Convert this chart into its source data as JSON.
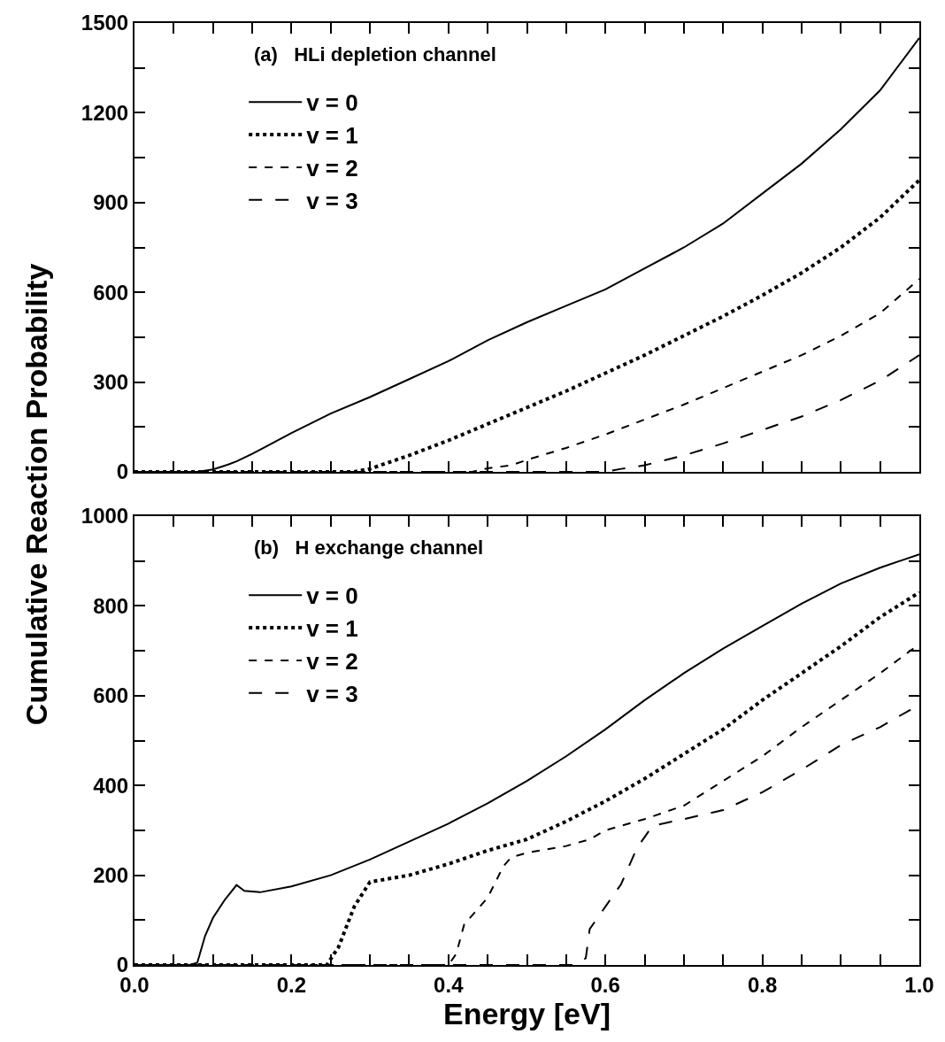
{
  "chart_data": [
    {
      "type": "line",
      "ylabel": "Cumulative Reaction Probability",
      "annotations": [
        "(a)   HLi depletion channel"
      ],
      "xlim": [
        0,
        1
      ],
      "ylim": [
        0,
        1500
      ],
      "xticks": [
        {
          "value": 0,
          "label": null
        },
        {
          "value": 0.05,
          "label": null
        },
        {
          "value": 0.1,
          "label": null
        },
        {
          "value": 0.15,
          "label": null
        },
        {
          "value": 0.2,
          "label": null
        },
        {
          "value": 0.25,
          "label": null
        },
        {
          "value": 0.3,
          "label": null
        },
        {
          "value": 0.35,
          "label": null
        },
        {
          "value": 0.4,
          "label": null
        },
        {
          "value": 0.45,
          "label": null
        },
        {
          "value": 0.5,
          "label": null
        },
        {
          "value": 0.55,
          "label": null
        },
        {
          "value": 0.6,
          "label": null
        },
        {
          "value": 0.65,
          "label": null
        },
        {
          "value": 0.7,
          "label": null
        },
        {
          "value": 0.75,
          "label": null
        },
        {
          "value": 0.8,
          "label": null
        },
        {
          "value": 0.85,
          "label": null
        },
        {
          "value": 0.9,
          "label": null
        },
        {
          "value": 0.95,
          "label": null
        },
        {
          "value": 1,
          "label": null
        }
      ],
      "yticks": [
        0,
        {
          "value": 150,
          "label": null
        },
        300,
        {
          "value": 450,
          "label": null
        },
        600,
        {
          "value": 750,
          "label": null
        },
        900,
        {
          "value": 1050,
          "label": null
        },
        1200,
        {
          "value": 1350,
          "label": null
        },
        1500
      ],
      "tick_labels": "y",
      "legend": "top left",
      "marker": "none",
      "series": [
        {
          "name": "v = 0",
          "color": "#000000",
          "line_style": "solid",
          "x": [
            0,
            0.08,
            0.1,
            0.12,
            0.13,
            0.15,
            0.2,
            0.25,
            0.3,
            0.35,
            0.4,
            0.45,
            0.5,
            0.55,
            0.6,
            0.65,
            0.7,
            0.75,
            0.8,
            0.85,
            0.9,
            0.95,
            1.0
          ],
          "values": [
            0,
            0,
            8,
            25,
            35,
            60,
            130,
            195,
            250,
            310,
            370,
            440,
            500,
            555,
            610,
            680,
            750,
            830,
            930,
            1030,
            1145,
            1275,
            1450
          ]
        },
        {
          "name": "v = 1",
          "color": "#000000",
          "line_style": "dotted",
          "x": [
            0,
            0.28,
            0.3,
            0.35,
            0.4,
            0.45,
            0.5,
            0.55,
            0.6,
            0.65,
            0.7,
            0.75,
            0.8,
            0.85,
            0.9,
            0.95,
            1.0
          ],
          "values": [
            0,
            0,
            10,
            55,
            105,
            160,
            215,
            270,
            330,
            390,
            455,
            520,
            590,
            665,
            750,
            850,
            975
          ]
        },
        {
          "name": "v = 2",
          "color": "#000000",
          "line_style": "dashed",
          "x": [
            0,
            0.43,
            0.45,
            0.48,
            0.5,
            0.55,
            0.6,
            0.65,
            0.7,
            0.75,
            0.8,
            0.85,
            0.9,
            0.95,
            1.0
          ],
          "values": [
            0,
            0,
            12,
            22,
            40,
            80,
            125,
            175,
            225,
            280,
            335,
            390,
            455,
            530,
            645
          ]
        },
        {
          "name": "v = 3",
          "color": "#000000",
          "line_style": "dashed",
          "x": [
            0,
            0.6,
            0.62,
            0.65,
            0.7,
            0.75,
            0.8,
            0.85,
            0.9,
            0.95,
            1.0
          ],
          "values": [
            0,
            0,
            10,
            22,
            55,
            95,
            140,
            185,
            240,
            305,
            390
          ]
        }
      ]
    },
    {
      "type": "line",
      "xlabel": "Energy [eV]",
      "annotations": [
        "(b)   H exchange channel"
      ],
      "xlim": [
        0,
        1
      ],
      "ylim": [
        0,
        1000
      ],
      "xticks": [
        {
          "value": 0,
          "label": "0.0"
        },
        {
          "value": 0.05,
          "label": null
        },
        {
          "value": 0.1,
          "label": null
        },
        {
          "value": 0.15,
          "label": null
        },
        {
          "value": 0.2,
          "label": "0.2"
        },
        {
          "value": 0.25,
          "label": null
        },
        {
          "value": 0.3,
          "label": null
        },
        {
          "value": 0.35,
          "label": null
        },
        {
          "value": 0.4,
          "label": "0.4"
        },
        {
          "value": 0.45,
          "label": null
        },
        {
          "value": 0.5,
          "label": null
        },
        {
          "value": 0.55,
          "label": null
        },
        {
          "value": 0.6,
          "label": "0.6"
        },
        {
          "value": 0.65,
          "label": null
        },
        {
          "value": 0.7,
          "label": null
        },
        {
          "value": 0.75,
          "label": null
        },
        {
          "value": 0.8,
          "label": "0.8"
        },
        {
          "value": 0.85,
          "label": null
        },
        {
          "value": 0.9,
          "label": null
        },
        {
          "value": 0.95,
          "label": null
        },
        {
          "value": 1,
          "label": "1.0"
        }
      ],
      "yticks": [
        0,
        {
          "value": 100,
          "label": null
        },
        200,
        {
          "value": 300,
          "label": null
        },
        400,
        {
          "value": 500,
          "label": null
        },
        600,
        {
          "value": 700,
          "label": null
        },
        800,
        {
          "value": 900,
          "label": null
        },
        1000
      ],
      "legend": "top left",
      "marker": "none",
      "series": [
        {
          "name": "v = 0",
          "color": "#000000",
          "line_style": "solid",
          "x": [
            0,
            0.07,
            0.08,
            0.09,
            0.1,
            0.115,
            0.13,
            0.14,
            0.16,
            0.2,
            0.25,
            0.3,
            0.35,
            0.4,
            0.45,
            0.5,
            0.55,
            0.6,
            0.65,
            0.7,
            0.75,
            0.8,
            0.85,
            0.9,
            0.95,
            1.0
          ],
          "values": [
            0,
            0,
            5,
            65,
            105,
            145,
            178,
            165,
            162,
            175,
            200,
            235,
            275,
            315,
            360,
            410,
            465,
            525,
            590,
            650,
            705,
            755,
            805,
            850,
            885,
            915
          ]
        },
        {
          "name": "v = 1",
          "color": "#000000",
          "line_style": "dotted",
          "x": [
            0,
            0.245,
            0.26,
            0.28,
            0.3,
            0.35,
            0.4,
            0.45,
            0.5,
            0.55,
            0.6,
            0.65,
            0.7,
            0.75,
            0.8,
            0.85,
            0.9,
            0.95,
            1.0
          ],
          "values": [
            0,
            0,
            40,
            130,
            185,
            200,
            225,
            255,
            280,
            320,
            365,
            415,
            470,
            525,
            590,
            650,
            710,
            775,
            830
          ]
        },
        {
          "name": "v = 2",
          "color": "#000000",
          "line_style": "dashed",
          "x": [
            0,
            0.4,
            0.41,
            0.42,
            0.45,
            0.47,
            0.48,
            0.5,
            0.55,
            0.58,
            0.6,
            0.65,
            0.7,
            0.75,
            0.8,
            0.85,
            0.9,
            0.95,
            1.0
          ],
          "values": [
            0,
            0,
            25,
            90,
            150,
            220,
            240,
            250,
            265,
            280,
            300,
            325,
            355,
            410,
            465,
            530,
            590,
            650,
            715
          ]
        },
        {
          "name": "v = 3",
          "color": "#000000",
          "line_style": "dashed",
          "x": [
            0,
            0.56,
            0.575,
            0.58,
            0.6,
            0.62,
            0.64,
            0.66,
            0.7,
            0.75,
            0.8,
            0.85,
            0.9,
            0.95,
            1.0
          ],
          "values": [
            0,
            0,
            15,
            80,
            130,
            180,
            260,
            310,
            325,
            345,
            385,
            435,
            490,
            530,
            580
          ]
        }
      ]
    }
  ]
}
